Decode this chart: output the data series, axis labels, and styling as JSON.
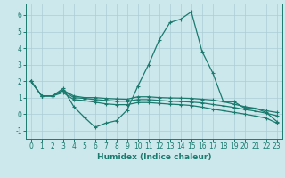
{
  "xlabel": "Humidex (Indice chaleur)",
  "ylabel": "",
  "bg_color": "#cce8ec",
  "grid_color": "#aacdd4",
  "line_color": "#1a7a6e",
  "xlim": [
    -0.5,
    23.5
  ],
  "ylim": [
    -1.5,
    6.7
  ],
  "yticks": [
    -1,
    0,
    1,
    2,
    3,
    4,
    5,
    6
  ],
  "xticks": [
    0,
    1,
    2,
    3,
    4,
    5,
    6,
    7,
    8,
    9,
    10,
    11,
    12,
    13,
    14,
    15,
    16,
    17,
    18,
    19,
    20,
    21,
    22,
    23
  ],
  "series": [
    [
      2.0,
      1.1,
      1.1,
      1.55,
      0.45,
      -0.2,
      -0.8,
      -0.55,
      -0.4,
      0.25,
      1.7,
      3.0,
      4.5,
      5.55,
      5.75,
      6.2,
      3.8,
      2.5,
      0.75,
      0.75,
      0.35,
      0.35,
      0.1,
      -0.45
    ],
    [
      2.0,
      1.1,
      1.1,
      1.45,
      1.1,
      1.0,
      1.0,
      0.95,
      0.92,
      0.9,
      1.05,
      1.05,
      1.0,
      0.98,
      0.97,
      0.95,
      0.9,
      0.85,
      0.75,
      0.6,
      0.45,
      0.35,
      0.2,
      0.1
    ],
    [
      2.0,
      1.1,
      1.1,
      1.42,
      1.0,
      0.95,
      0.88,
      0.83,
      0.78,
      0.78,
      0.88,
      0.88,
      0.83,
      0.78,
      0.76,
      0.73,
      0.68,
      0.58,
      0.5,
      0.4,
      0.28,
      0.18,
      0.05,
      -0.1
    ],
    [
      2.0,
      1.1,
      1.1,
      1.3,
      0.88,
      0.82,
      0.72,
      0.62,
      0.57,
      0.57,
      0.7,
      0.7,
      0.65,
      0.6,
      0.57,
      0.52,
      0.42,
      0.3,
      0.2,
      0.1,
      0.0,
      -0.12,
      -0.25,
      -0.55
    ]
  ]
}
